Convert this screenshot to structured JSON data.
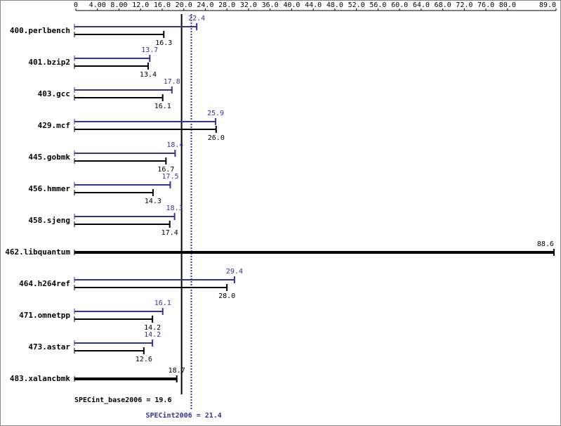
{
  "chart_data": {
    "type": "bar",
    "orientation": "horizontal",
    "categories": [
      "400.perlbench",
      "401.bzip2",
      "403.gcc",
      "429.mcf",
      "445.gobmk",
      "456.hmmer",
      "458.sjeng",
      "462.libquantum",
      "464.h264ref",
      "471.omnetpp",
      "473.astar",
      "483.xalancbmk"
    ],
    "series": [
      {
        "color": "#333399",
        "values": [
          22.4,
          13.7,
          17.8,
          25.9,
          18.4,
          17.5,
          18.3,
          null,
          29.4,
          16.1,
          14.2,
          null
        ],
        "value_labels": [
          "22.4",
          "13.7",
          "17.8",
          "25.9",
          "18.4",
          "17.5",
          "18.3",
          null,
          "29.4",
          "16.1",
          "14.2",
          null
        ]
      },
      {
        "color": "#000000",
        "values": [
          16.3,
          13.4,
          16.1,
          26.0,
          16.7,
          14.3,
          17.4,
          88.6,
          28.0,
          14.2,
          12.6,
          18.7
        ],
        "value_labels": [
          "16.3",
          "13.4",
          "16.1",
          "26.0",
          "16.7",
          "14.3",
          "17.4",
          "88.6",
          "28.0",
          "14.2",
          "12.6",
          "18.7"
        ]
      }
    ],
    "xlim": [
      0,
      89
    ],
    "xticks": [
      0,
      {
        "value": 4,
        "label": "4.00"
      },
      {
        "value": 8,
        "label": "8.00"
      },
      {
        "value": 12,
        "label": "12.0"
      },
      {
        "value": 16,
        "label": "16.0"
      },
      {
        "value": 20,
        "label": "20.0"
      },
      {
        "value": 24,
        "label": "24.0"
      },
      {
        "value": 28,
        "label": "28.0"
      },
      {
        "value": 32,
        "label": "32.0"
      },
      {
        "value": 36,
        "label": "36.0"
      },
      {
        "value": 40,
        "label": "40.0"
      },
      {
        "value": 44,
        "label": "44.0"
      },
      {
        "value": 48,
        "label": "48.0"
      },
      {
        "value": 52,
        "label": "52.0"
      },
      {
        "value": 56,
        "label": "56.0"
      },
      {
        "value": 60,
        "label": "60.0"
      },
      {
        "value": 64,
        "label": "64.0"
      },
      {
        "value": 68,
        "label": "68.0"
      },
      {
        "value": 72,
        "label": "72.0"
      },
      {
        "value": 76,
        "label": "76.0"
      },
      {
        "value": 80,
        "label": "80.0"
      },
      {
        "value": 89,
        "label": "89.0"
      }
    ],
    "grid": false,
    "reference_lines": [
      {
        "label": "SPECint_base2006 = 19.6",
        "value": 19.6,
        "color": "#000000",
        "style": "solid"
      },
      {
        "label": "SPECint2006 = 21.4",
        "value": 21.4,
        "color": "#333399",
        "style": "dotted"
      }
    ]
  }
}
